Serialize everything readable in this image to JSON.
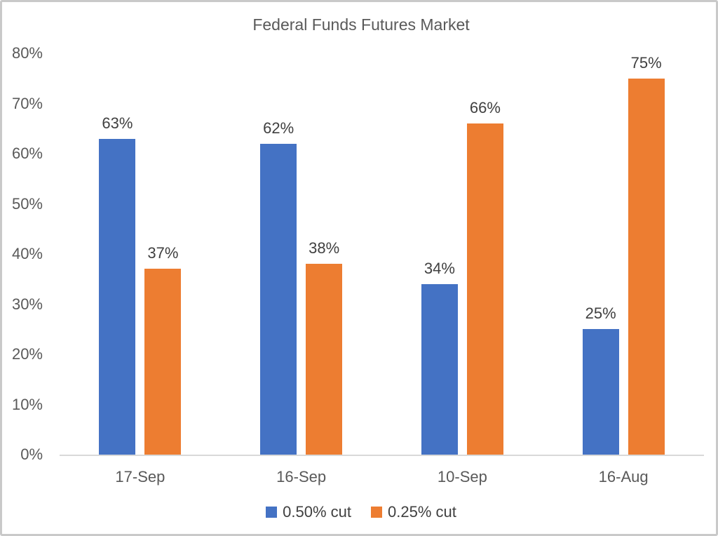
{
  "chart_data": {
    "type": "bar",
    "title": "Federal Funds Futures Market",
    "categories": [
      "17-Sep",
      "16-Sep",
      "10-Sep",
      "16-Aug"
    ],
    "series": [
      {
        "name": "0.50% cut",
        "color": "#4472C4",
        "values": [
          63,
          62,
          34,
          25
        ],
        "labels": [
          "63%",
          "62%",
          "34%",
          "25%"
        ]
      },
      {
        "name": "0.25% cut",
        "color": "#ED7D31",
        "values": [
          37,
          38,
          66,
          75
        ],
        "labels": [
          "37%",
          "38%",
          "66%",
          "75%"
        ]
      }
    ],
    "xlabel": "",
    "ylabel": "",
    "y_ticks": [
      "0%",
      "10%",
      "20%",
      "30%",
      "40%",
      "50%",
      "60%",
      "70%",
      "80%"
    ],
    "ylim": [
      0,
      80
    ],
    "grid": false,
    "legend_position": "bottom",
    "colors": {
      "title_text": "#595959",
      "axis_text": "#595959",
      "data_label_text": "#404040",
      "axis_line": "#d9d9d9",
      "frame_border": "#c9c9c9"
    }
  }
}
